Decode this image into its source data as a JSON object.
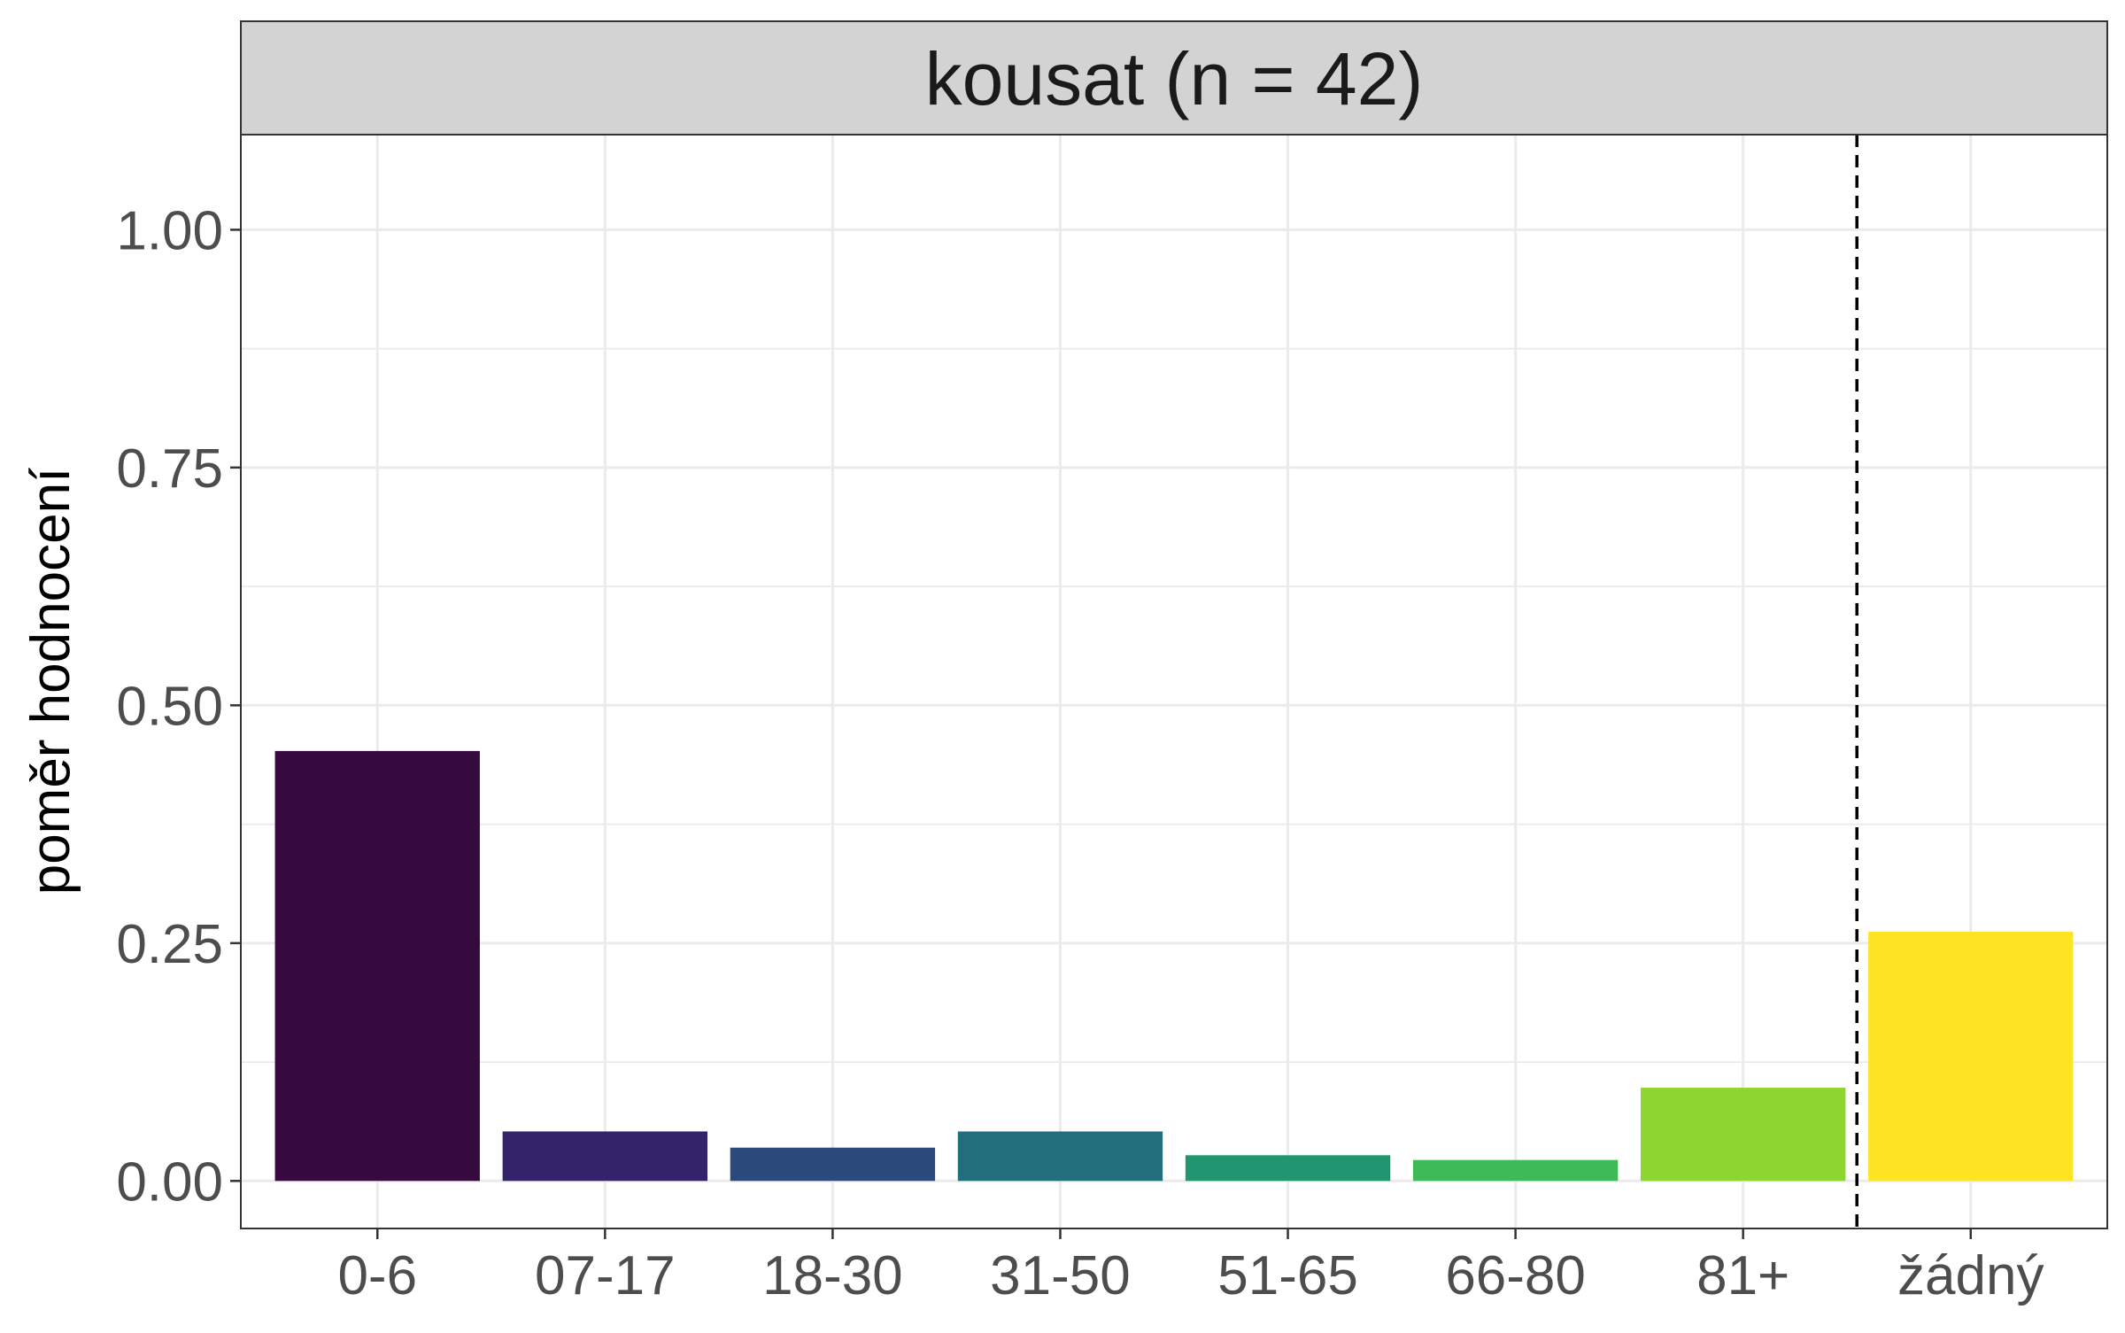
{
  "chart_data": {
    "type": "bar",
    "facet_title": "kousat (n = 42)",
    "ylabel": "poměr hodnocení",
    "xlabel": "",
    "ylim": [
      -0.05,
      1.1
    ],
    "yticks": [
      0.0,
      0.25,
      0.5,
      0.75,
      1.0
    ],
    "ytick_labels": [
      "0.00",
      "0.25",
      "0.50",
      "0.75",
      "1.00"
    ],
    "categories": [
      "0-6",
      "07-17",
      "18-30",
      "31-50",
      "51-65",
      "66-80",
      "81+",
      "žádný"
    ],
    "values": [
      0.452,
      0.052,
      0.035,
      0.052,
      0.027,
      0.022,
      0.098,
      0.262
    ],
    "colors": [
      "#360A3F",
      "#34236A",
      "#294A7B",
      "#226E7C",
      "#209570",
      "#3EBB58",
      "#8FD52F",
      "#FDE524"
    ],
    "reference_line": {
      "between_categories": [
        "81+",
        "žádný"
      ],
      "style": "dashed"
    },
    "grid": true,
    "legend": "none"
  }
}
